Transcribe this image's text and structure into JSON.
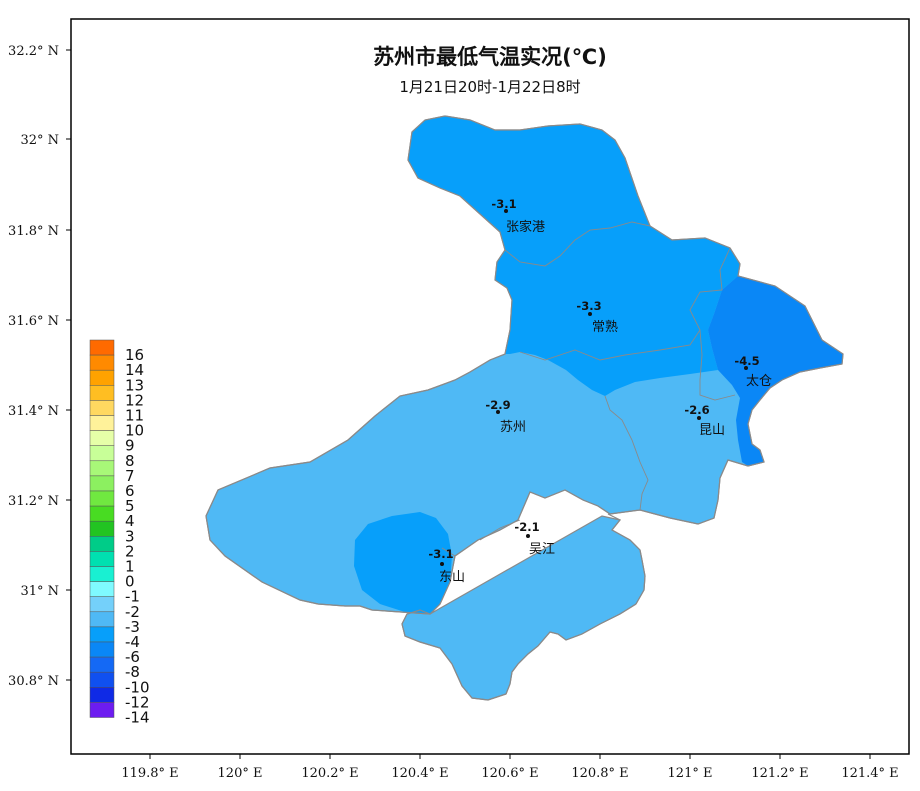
{
  "title": "苏州市最低气温实况(℃)",
  "subtitle": "1月21日20时-1月22日8时",
  "axes": {
    "x_ticks": [
      "119.8° E",
      "120° E",
      "120.2° E",
      "120.4° E",
      "120.6° E",
      "120.8° E",
      "121° E",
      "121.2° E",
      "121.4° E"
    ],
    "y_ticks": [
      "32.2° N",
      "32° N",
      "31.8° N",
      "31.6° N",
      "31.4° N",
      "31.2° N",
      "31° N",
      "30.8° N"
    ]
  },
  "stations": [
    {
      "name": "张家港",
      "value": "-3.1"
    },
    {
      "name": "常熟",
      "value": "-3.3"
    },
    {
      "name": "太仓",
      "value": "-4.5"
    },
    {
      "name": "苏州",
      "value": "-2.9"
    },
    {
      "name": "昆山",
      "value": "-2.6"
    },
    {
      "name": "吴江",
      "value": "-2.1"
    },
    {
      "name": "东山",
      "value": "-3.1"
    }
  ],
  "legend": {
    "labels": [
      "16",
      "14",
      "13",
      "12",
      "11",
      "10",
      "9",
      "8",
      "7",
      "6",
      "5",
      "4",
      "3",
      "2",
      "1",
      "0",
      "-1",
      "-2",
      "-3",
      "-4",
      "-6",
      "-8",
      "-10",
      "-12",
      "-14"
    ],
    "colors": [
      "#ff6a00",
      "#ff8a00",
      "#ffa200",
      "#ffbe22",
      "#ffd860",
      "#fff29a",
      "#e6ffa8",
      "#c8ff98",
      "#a8f878",
      "#8cf060",
      "#70e840",
      "#48dc22",
      "#22c422",
      "#00cc88",
      "#00e0b0",
      "#19f0d2",
      "#7ffaff",
      "#74d0fa",
      "#4fb9f5",
      "#079ffa",
      "#0a87f6",
      "#1469f5",
      "#1050f0",
      "#0f2ae6",
      "#6d1cf0"
    ]
  },
  "fill_colors": {
    "minus_2_to_minus_1": "#4fb9f5",
    "minus_3_to_minus_2": "#079ffa",
    "minus_4_to_minus_3": "#0a87f6"
  }
}
